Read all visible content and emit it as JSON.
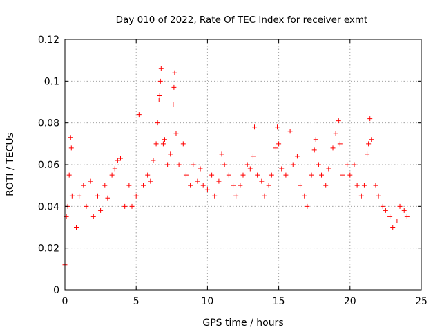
{
  "chart_data": {
    "type": "scatter",
    "title": "Day 010 of 2022, Rate Of TEC Index for receiver exmt",
    "xlabel": "GPS time / hours",
    "ylabel": "ROTI / TECUs",
    "xlim": [
      0,
      25
    ],
    "ylim": [
      0,
      0.12
    ],
    "x_ticks": [
      0,
      5,
      10,
      15,
      20,
      25
    ],
    "x_tick_labels": [
      "0",
      "5",
      "10",
      "15",
      "20",
      "25"
    ],
    "y_ticks": [
      0,
      0.02,
      0.04,
      0.06,
      0.08,
      0.1,
      0.12
    ],
    "y_tick_labels": [
      "0",
      "0.02",
      "0.04",
      "0.06",
      "0.08",
      "0.1",
      "0.12"
    ],
    "grid": true,
    "marker": "+",
    "marker_color": "#ff0000",
    "series": [
      {
        "name": "ROTI",
        "color": "#ff0000",
        "points": [
          [
            0.0,
            0.012
          ],
          [
            0.1,
            0.035
          ],
          [
            0.2,
            0.04
          ],
          [
            0.3,
            0.055
          ],
          [
            0.4,
            0.073
          ],
          [
            0.45,
            0.068
          ],
          [
            0.5,
            0.045
          ],
          [
            0.8,
            0.03
          ],
          [
            1.0,
            0.045
          ],
          [
            1.3,
            0.05
          ],
          [
            1.5,
            0.04
          ],
          [
            1.8,
            0.052
          ],
          [
            2.0,
            0.035
          ],
          [
            2.3,
            0.045
          ],
          [
            2.5,
            0.038
          ],
          [
            2.8,
            0.05
          ],
          [
            3.0,
            0.044
          ],
          [
            3.3,
            0.055
          ],
          [
            3.5,
            0.058
          ],
          [
            3.7,
            0.062
          ],
          [
            3.9,
            0.063
          ],
          [
            4.2,
            0.04
          ],
          [
            4.5,
            0.05
          ],
          [
            4.7,
            0.04
          ],
          [
            5.0,
            0.045
          ],
          [
            5.2,
            0.084
          ],
          [
            5.5,
            0.05
          ],
          [
            5.8,
            0.055
          ],
          [
            6.0,
            0.052
          ],
          [
            6.2,
            0.062
          ],
          [
            6.4,
            0.07
          ],
          [
            6.5,
            0.08
          ],
          [
            6.6,
            0.091
          ],
          [
            6.65,
            0.093
          ],
          [
            6.7,
            0.1
          ],
          [
            6.75,
            0.106
          ],
          [
            6.9,
            0.07
          ],
          [
            7.0,
            0.072
          ],
          [
            7.2,
            0.06
          ],
          [
            7.4,
            0.065
          ],
          [
            7.6,
            0.089
          ],
          [
            7.65,
            0.097
          ],
          [
            7.7,
            0.104
          ],
          [
            7.8,
            0.075
          ],
          [
            8.0,
            0.06
          ],
          [
            8.3,
            0.07
          ],
          [
            8.5,
            0.055
          ],
          [
            8.8,
            0.05
          ],
          [
            9.0,
            0.06
          ],
          [
            9.3,
            0.052
          ],
          [
            9.5,
            0.058
          ],
          [
            9.7,
            0.05
          ],
          [
            10.0,
            0.048
          ],
          [
            10.3,
            0.055
          ],
          [
            10.5,
            0.045
          ],
          [
            10.8,
            0.052
          ],
          [
            11.0,
            0.065
          ],
          [
            11.2,
            0.06
          ],
          [
            11.5,
            0.055
          ],
          [
            11.8,
            0.05
          ],
          [
            12.0,
            0.045
          ],
          [
            12.3,
            0.05
          ],
          [
            12.5,
            0.055
          ],
          [
            12.8,
            0.06
          ],
          [
            13.0,
            0.058
          ],
          [
            13.2,
            0.064
          ],
          [
            13.3,
            0.078
          ],
          [
            13.5,
            0.055
          ],
          [
            13.8,
            0.052
          ],
          [
            14.0,
            0.045
          ],
          [
            14.3,
            0.05
          ],
          [
            14.5,
            0.055
          ],
          [
            14.8,
            0.068
          ],
          [
            14.9,
            0.078
          ],
          [
            15.0,
            0.07
          ],
          [
            15.2,
            0.058
          ],
          [
            15.5,
            0.055
          ],
          [
            15.8,
            0.076
          ],
          [
            16.0,
            0.06
          ],
          [
            16.3,
            0.064
          ],
          [
            16.5,
            0.05
          ],
          [
            16.8,
            0.045
          ],
          [
            17.0,
            0.04
          ],
          [
            17.3,
            0.055
          ],
          [
            17.5,
            0.067
          ],
          [
            17.6,
            0.072
          ],
          [
            17.8,
            0.06
          ],
          [
            18.0,
            0.055
          ],
          [
            18.3,
            0.05
          ],
          [
            18.5,
            0.058
          ],
          [
            18.8,
            0.068
          ],
          [
            19.0,
            0.075
          ],
          [
            19.2,
            0.081
          ],
          [
            19.3,
            0.07
          ],
          [
            19.5,
            0.055
          ],
          [
            19.8,
            0.06
          ],
          [
            20.0,
            0.055
          ],
          [
            20.3,
            0.06
          ],
          [
            20.5,
            0.05
          ],
          [
            20.8,
            0.045
          ],
          [
            21.0,
            0.05
          ],
          [
            21.2,
            0.065
          ],
          [
            21.3,
            0.07
          ],
          [
            21.4,
            0.082
          ],
          [
            21.5,
            0.072
          ],
          [
            21.8,
            0.05
          ],
          [
            22.0,
            0.045
          ],
          [
            22.3,
            0.04
          ],
          [
            22.5,
            0.038
          ],
          [
            22.8,
            0.035
          ],
          [
            23.0,
            0.03
          ],
          [
            23.3,
            0.033
          ],
          [
            23.5,
            0.04
          ],
          [
            23.8,
            0.038
          ],
          [
            24.0,
            0.035
          ]
        ]
      }
    ]
  }
}
